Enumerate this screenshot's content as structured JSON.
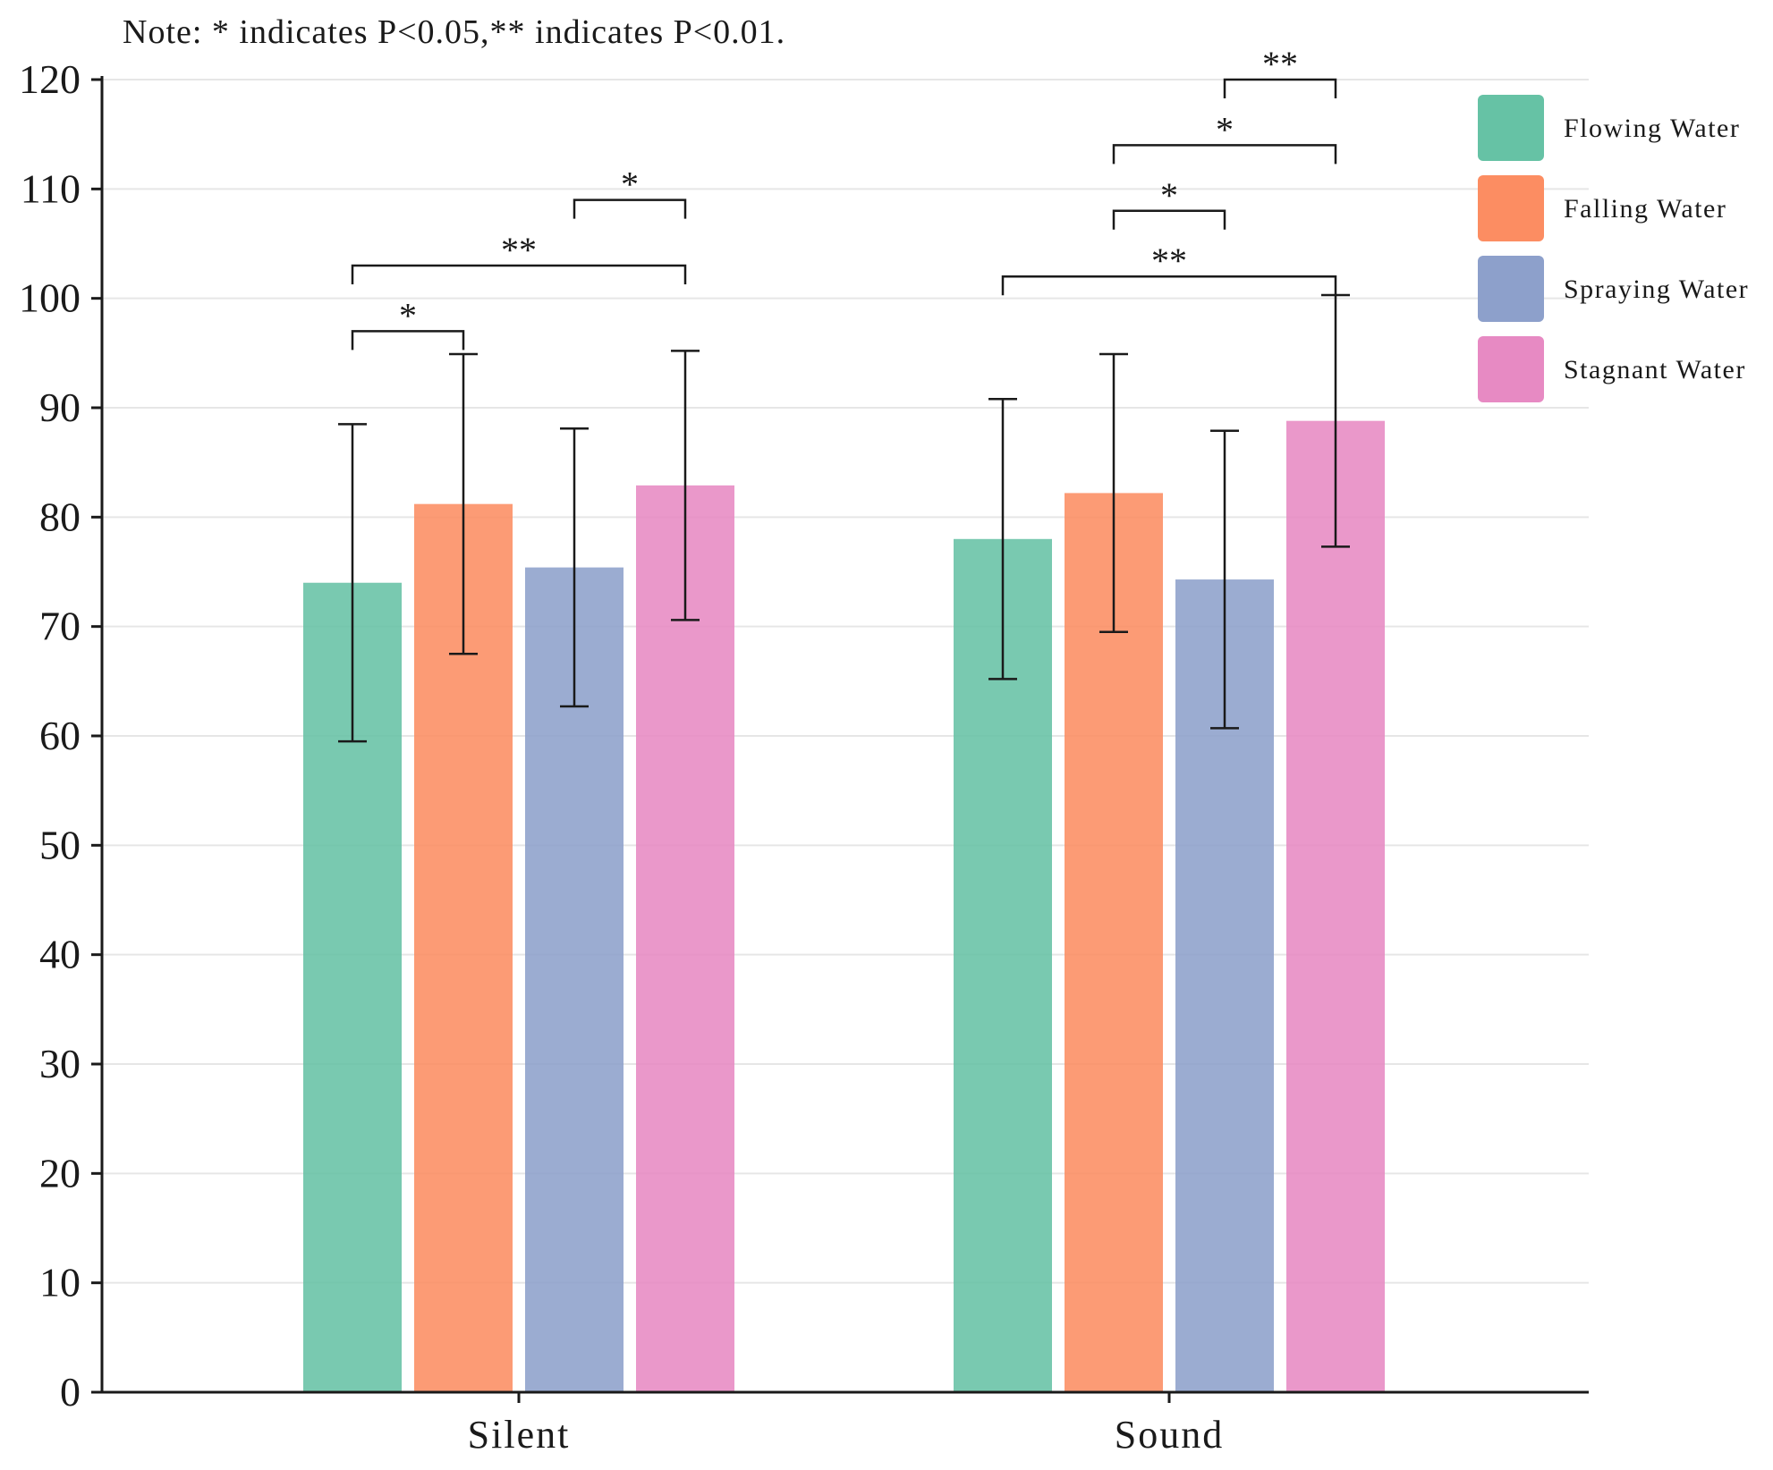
{
  "chart_data": {
    "type": "bar",
    "note": "Note: * indicates P<0.05,** indicates P<0.01.",
    "categories": [
      "Silent",
      "Sound"
    ],
    "series": [
      {
        "name": "Flowing Water",
        "color": "#66c2a5",
        "values": [
          74.0,
          78.0
        ],
        "errors": [
          14.5,
          12.8
        ]
      },
      {
        "name": "Falling Water",
        "color": "#fc8d62",
        "values": [
          81.2,
          82.2
        ],
        "errors": [
          13.7,
          12.7
        ]
      },
      {
        "name": "Spraying Water",
        "color": "#8da0cb",
        "values": [
          75.4,
          74.3
        ],
        "errors": [
          12.7,
          13.6
        ]
      },
      {
        "name": "Stagnant Water",
        "color": "#e78ac3",
        "values": [
          82.9,
          88.8
        ],
        "errors": [
          12.3,
          11.5
        ]
      }
    ],
    "ylim": [
      0,
      120
    ],
    "yticks": [
      0,
      10,
      20,
      30,
      40,
      50,
      60,
      70,
      80,
      90,
      100,
      110,
      120
    ],
    "xlabel": "",
    "ylabel": "",
    "grid": true,
    "legend_position": "top-right",
    "significance": [
      {
        "category": 0,
        "from": 0,
        "to": 1,
        "level": 97,
        "label": "*"
      },
      {
        "category": 0,
        "from": 0,
        "to": 3,
        "level": 103,
        "label": "**"
      },
      {
        "category": 0,
        "from": 2,
        "to": 3,
        "level": 109,
        "label": "*"
      },
      {
        "category": 1,
        "from": 0,
        "to": 3,
        "level": 102,
        "label": "**"
      },
      {
        "category": 1,
        "from": 1,
        "to": 2,
        "level": 108,
        "label": "*"
      },
      {
        "category": 1,
        "from": 1,
        "to": 3,
        "level": 114,
        "label": "*"
      },
      {
        "category": 1,
        "from": 2,
        "to": 3,
        "level": 120,
        "label": "**"
      }
    ]
  }
}
